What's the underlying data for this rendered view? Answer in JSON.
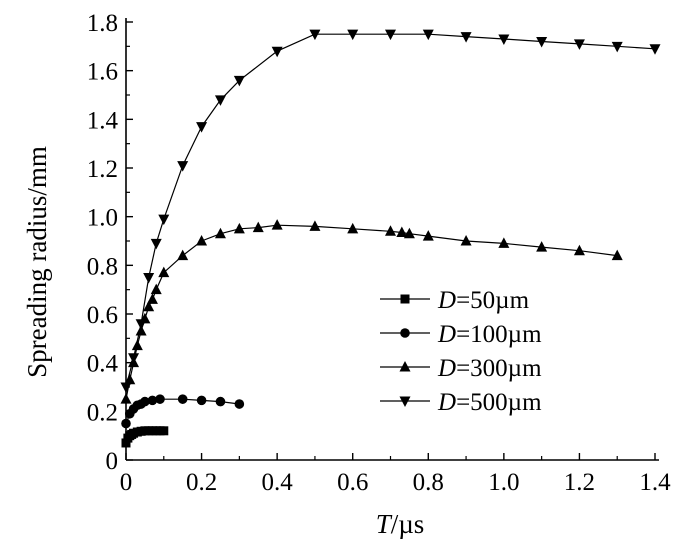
{
  "chart_data": {
    "type": "line",
    "title": "",
    "xlabel": {
      "italic": "T",
      "rest": "/µs"
    },
    "ylabel": "Spreading radius/mm",
    "xlim": [
      0,
      1.4
    ],
    "ylim": [
      0,
      1.8
    ],
    "xticks": [
      "0",
      "0.2",
      "0.4",
      "0.6",
      "0.8",
      "1.0",
      "1.2",
      "1.4"
    ],
    "yticks": [
      "0",
      "0.2",
      "0.4",
      "0.6",
      "0.8",
      "1.0",
      "1.2",
      "1.4",
      "1.6",
      "1.8"
    ],
    "grid": false,
    "legend_position": "center-right",
    "series": [
      {
        "name": "D=50µm",
        "name_italic": "D",
        "name_rest": "=50µm",
        "marker": "square",
        "points": [
          [
            0.0,
            0.07
          ],
          [
            0.005,
            0.09
          ],
          [
            0.01,
            0.1
          ],
          [
            0.015,
            0.105
          ],
          [
            0.02,
            0.11
          ],
          [
            0.03,
            0.115
          ],
          [
            0.04,
            0.118
          ],
          [
            0.05,
            0.12
          ],
          [
            0.06,
            0.12
          ],
          [
            0.07,
            0.12
          ],
          [
            0.08,
            0.12
          ],
          [
            0.09,
            0.12
          ],
          [
            0.1,
            0.12
          ]
        ]
      },
      {
        "name": "D=100µm",
        "name_italic": "D",
        "name_rest": "=100µm",
        "marker": "circle",
        "points": [
          [
            0.0,
            0.15
          ],
          [
            0.01,
            0.19
          ],
          [
            0.02,
            0.21
          ],
          [
            0.03,
            0.225
          ],
          [
            0.04,
            0.23
          ],
          [
            0.05,
            0.24
          ],
          [
            0.07,
            0.245
          ],
          [
            0.09,
            0.25
          ],
          [
            0.15,
            0.25
          ],
          [
            0.2,
            0.245
          ],
          [
            0.25,
            0.24
          ],
          [
            0.3,
            0.23
          ]
        ]
      },
      {
        "name": "D=300µm",
        "name_italic": "D",
        "name_rest": "=300µm",
        "marker": "triangle-up",
        "points": [
          [
            0.0,
            0.25
          ],
          [
            0.01,
            0.33
          ],
          [
            0.02,
            0.4
          ],
          [
            0.03,
            0.47
          ],
          [
            0.04,
            0.53
          ],
          [
            0.05,
            0.58
          ],
          [
            0.06,
            0.63
          ],
          [
            0.07,
            0.66
          ],
          [
            0.08,
            0.7
          ],
          [
            0.1,
            0.77
          ],
          [
            0.15,
            0.84
          ],
          [
            0.2,
            0.9
          ],
          [
            0.25,
            0.93
          ],
          [
            0.3,
            0.95
          ],
          [
            0.35,
            0.955
          ],
          [
            0.4,
            0.965
          ],
          [
            0.5,
            0.96
          ],
          [
            0.6,
            0.95
          ],
          [
            0.7,
            0.94
          ],
          [
            0.73,
            0.935
          ],
          [
            0.75,
            0.93
          ],
          [
            0.8,
            0.92
          ],
          [
            0.9,
            0.9
          ],
          [
            1.0,
            0.89
          ],
          [
            1.1,
            0.875
          ],
          [
            1.2,
            0.86
          ],
          [
            1.3,
            0.84
          ]
        ]
      },
      {
        "name": "D=500µm",
        "name_italic": "D",
        "name_rest": "=500µm",
        "marker": "triangle-down",
        "points": [
          [
            0.0,
            0.3
          ],
          [
            0.02,
            0.42
          ],
          [
            0.04,
            0.56
          ],
          [
            0.06,
            0.75
          ],
          [
            0.08,
            0.89
          ],
          [
            0.1,
            0.99
          ],
          [
            0.15,
            1.21
          ],
          [
            0.2,
            1.37
          ],
          [
            0.25,
            1.48
          ],
          [
            0.3,
            1.56
          ],
          [
            0.4,
            1.68
          ],
          [
            0.5,
            1.75
          ],
          [
            0.6,
            1.75
          ],
          [
            0.7,
            1.75
          ],
          [
            0.8,
            1.75
          ],
          [
            0.9,
            1.74
          ],
          [
            1.0,
            1.73
          ],
          [
            1.1,
            1.72
          ],
          [
            1.2,
            1.71
          ],
          [
            1.3,
            1.7
          ],
          [
            1.4,
            1.69
          ]
        ]
      }
    ]
  }
}
